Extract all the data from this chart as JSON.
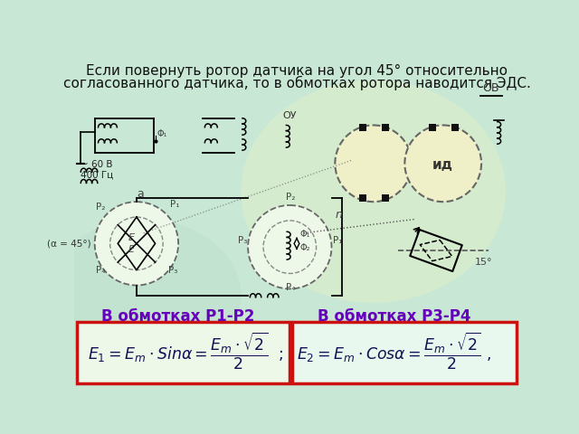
{
  "title_line1": "Если повернуть ротор датчика на угол 45° относительно",
  "title_line2": "согласованного датчика, то в обмотках ротора наводится ЭДС.",
  "label_ob": "ОВ",
  "label_oy": "ОУ",
  "label_id": "ид",
  "label_alpha": "(α = 45°)",
  "label_a": "a",
  "label_voltage": "~ 60 В\n400 Гц",
  "caption_left": "В обмотках Р1-Р2",
  "caption_right": "В обмотках Р3-Р4",
  "bg_color": "#c8e8d5",
  "bg_color2": "#d5eed8",
  "title_color": "#111111",
  "caption_color": "#6600bb",
  "formula_color": "#111155",
  "formula_bg_left": "#eef8e8",
  "formula_bg_right": "#e8f8ee",
  "formula_box_color": "#cc1111",
  "diagram_color": "#444444",
  "circle_edge": "#666666",
  "circle_fill": "#eef8e8"
}
